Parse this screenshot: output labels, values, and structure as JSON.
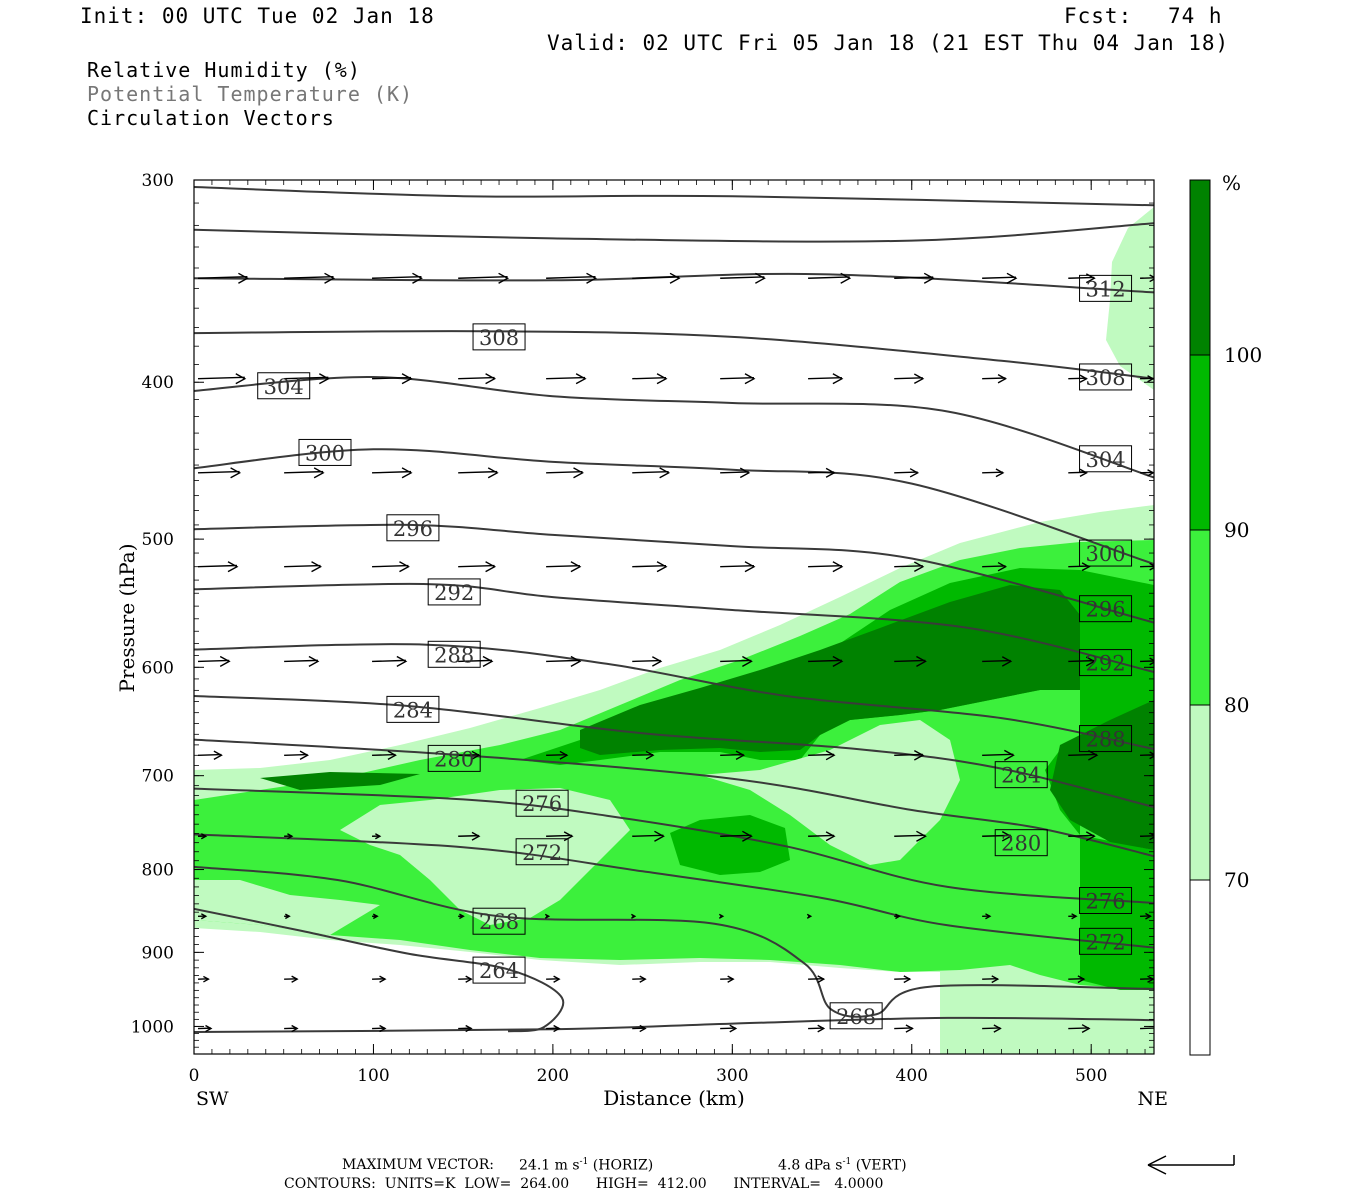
{
  "header": {
    "init": "Init: 00 UTC Tue 02 Jan 18",
    "fcst_label": "Fcst:",
    "fcst_value": "74 h",
    "valid": "Valid: 02 UTC Fri 05 Jan 18 (21 EST Thu 04 Jan 18)"
  },
  "fields": {
    "rh": "Relative Humidity (%)",
    "theta": "Potential Temperature (K)",
    "vectors": "Circulation Vectors"
  },
  "colors": {
    "rh_70_80": "#c0fac0",
    "rh_80_90": "#3cf03c",
    "rh_90_100": "#00b900",
    "rh_100": "#008200",
    "contour": "#3a3a3a",
    "label_gray": "#777777"
  },
  "chart_data": {
    "type": "cross-section",
    "xlabel": "Distance (km)",
    "ylabel": "Pressure (hPa)",
    "xlim": [
      0,
      535
    ],
    "ylim": [
      1040,
      300
    ],
    "y_scale": "log-pressure",
    "x_ticks": [
      "0",
      "100",
      "200",
      "300",
      "400",
      "500"
    ],
    "x_tick_values": [
      0,
      100,
      200,
      300,
      400,
      500
    ],
    "y_ticks": [
      "300",
      "400",
      "500",
      "600",
      "700",
      "800",
      "900",
      "1000"
    ],
    "y_tick_values": [
      300,
      400,
      500,
      600,
      700,
      800,
      900,
      1000
    ],
    "endpoint_left": "SW",
    "endpoint_right": "NE",
    "colorbar": {
      "unit": "%",
      "levels": [
        "70",
        "80",
        "90",
        "100"
      ],
      "level_values": [
        70,
        80,
        90,
        100
      ]
    },
    "theta_contours": [
      {
        "label": "312",
        "points": [
          [
            0,
            303
          ],
          [
            150,
            307
          ],
          [
            300,
            307
          ],
          [
            535,
            311
          ]
        ]
      },
      {
        "label": "312",
        "points": [
          [
            0,
            322
          ],
          [
            200,
            326
          ],
          [
            400,
            327
          ],
          [
            535,
            319
          ]
        ]
      },
      {
        "label": "312",
        "points": [
          [
            0,
            345
          ],
          [
            200,
            346
          ],
          [
            350,
            343
          ],
          [
            535,
            352
          ]
        ]
      },
      {
        "label": "308",
        "points": [
          [
            0,
            373
          ],
          [
            160,
            372
          ],
          [
            300,
            375
          ],
          [
            450,
            388
          ],
          [
            535,
            398
          ]
        ]
      },
      {
        "label": "304",
        "points": [
          [
            0,
            405
          ],
          [
            100,
            397
          ],
          [
            200,
            408
          ],
          [
            300,
            412
          ],
          [
            420,
            417
          ],
          [
            535,
            458
          ]
        ]
      },
      {
        "label": "300",
        "points": [
          [
            0,
            452
          ],
          [
            100,
            440
          ],
          [
            200,
            448
          ],
          [
            300,
            453
          ],
          [
            400,
            462
          ],
          [
            535,
            518
          ]
        ]
      },
      {
        "label": "296",
        "points": [
          [
            0,
            493
          ],
          [
            120,
            490
          ],
          [
            200,
            497
          ],
          [
            300,
            505
          ],
          [
            400,
            514
          ],
          [
            535,
            563
          ]
        ]
      },
      {
        "label": "292",
        "points": [
          [
            0,
            537
          ],
          [
            130,
            533
          ],
          [
            200,
            543
          ],
          [
            300,
            553
          ],
          [
            430,
            567
          ],
          [
            535,
            604
          ]
        ]
      },
      {
        "label": "288",
        "points": [
          [
            0,
            585
          ],
          [
            130,
            581
          ],
          [
            230,
            597
          ],
          [
            330,
            625
          ],
          [
            450,
            645
          ],
          [
            535,
            674
          ]
        ]
      },
      {
        "label": "284",
        "points": [
          [
            0,
            625
          ],
          [
            120,
            634
          ],
          [
            250,
            659
          ],
          [
            370,
            674
          ],
          [
            450,
            693
          ],
          [
            535,
            732
          ]
        ]
      },
      {
        "label": "280",
        "points": [
          [
            0,
            665
          ],
          [
            150,
            680
          ],
          [
            300,
            703
          ],
          [
            400,
            735
          ],
          [
            470,
            754
          ],
          [
            535,
            785
          ]
        ]
      },
      {
        "label": "276",
        "points": [
          [
            0,
            713
          ],
          [
            150,
            724
          ],
          [
            230,
            741
          ],
          [
            330,
            774
          ],
          [
            420,
            820
          ],
          [
            535,
            839
          ]
        ]
      },
      {
        "label": "272",
        "points": [
          [
            0,
            761
          ],
          [
            150,
            775
          ],
          [
            250,
            802
          ],
          [
            350,
            833
          ],
          [
            420,
            866
          ],
          [
            535,
            894
          ]
        ]
      },
      {
        "label": "268",
        "points": [
          [
            0,
            797
          ],
          [
            80,
            812
          ],
          [
            170,
            855
          ],
          [
            290,
            864
          ],
          [
            340,
            914
          ],
          [
            355,
            976
          ],
          [
            380,
            983
          ],
          [
            410,
            945
          ],
          [
            535,
            948
          ]
        ]
      },
      {
        "label": "264",
        "points": [
          [
            0,
            846
          ],
          [
            60,
            873
          ],
          [
            120,
            902
          ],
          [
            175,
            922
          ],
          [
            205,
            960
          ],
          [
            195,
            1001
          ],
          [
            175,
            1007
          ]
        ]
      },
      {
        "label": "",
        "points": [
          [
            0,
            1008
          ],
          [
            200,
            1004
          ],
          [
            300,
            996
          ],
          [
            420,
            988
          ],
          [
            535,
            991
          ]
        ]
      }
    ],
    "theta_labels": [
      {
        "text": "312",
        "x": 508,
        "p": 350
      },
      {
        "text": "308",
        "x": 170,
        "p": 375
      },
      {
        "text": "308",
        "x": 508,
        "p": 397
      },
      {
        "text": "304",
        "x": 50,
        "p": 402
      },
      {
        "text": "304",
        "x": 508,
        "p": 446
      },
      {
        "text": "300",
        "x": 73,
        "p": 442
      },
      {
        "text": "300",
        "x": 508,
        "p": 510
      },
      {
        "text": "296",
        "x": 122,
        "p": 492
      },
      {
        "text": "296",
        "x": 508,
        "p": 552
      },
      {
        "text": "292",
        "x": 145,
        "p": 539
      },
      {
        "text": "292",
        "x": 508,
        "p": 596
      },
      {
        "text": "288",
        "x": 145,
        "p": 589
      },
      {
        "text": "288",
        "x": 508,
        "p": 664
      },
      {
        "text": "284",
        "x": 122,
        "p": 637
      },
      {
        "text": "284",
        "x": 461,
        "p": 699
      },
      {
        "text": "280",
        "x": 145,
        "p": 683
      },
      {
        "text": "280",
        "x": 461,
        "p": 770
      },
      {
        "text": "276",
        "x": 194,
        "p": 728
      },
      {
        "text": "276",
        "x": 508,
        "p": 836
      },
      {
        "text": "272",
        "x": 194,
        "p": 780
      },
      {
        "text": "272",
        "x": 508,
        "p": 886
      },
      {
        "text": "268",
        "x": 170,
        "p": 861
      },
      {
        "text": "268",
        "x": 369,
        "p": 985
      },
      {
        "text": "264",
        "x": 170,
        "p": 923
      }
    ],
    "vector_rows": [
      {
        "p": 345,
        "dx": [
          38,
          38,
          38,
          38,
          38,
          36,
          34,
          32,
          30,
          26,
          20,
          12
        ]
      },
      {
        "p": 398,
        "dx": [
          36,
          34,
          30,
          28,
          30,
          26,
          26,
          26,
          22,
          18,
          14,
          10
        ]
      },
      {
        "p": 455,
        "dx": [
          32,
          30,
          30,
          30,
          28,
          28,
          22,
          20,
          18,
          16,
          14,
          10
        ]
      },
      {
        "p": 520,
        "dx": [
          30,
          28,
          28,
          28,
          26,
          26,
          26,
          26,
          22,
          18,
          16,
          12
        ]
      },
      {
        "p": 595,
        "dx": [
          24,
          26,
          26,
          26,
          26,
          22,
          24,
          26,
          24,
          22,
          20,
          12
        ]
      },
      {
        "p": 680,
        "dx": [
          18,
          18,
          18,
          16,
          16,
          16,
          18,
          20,
          22,
          24,
          22,
          12
        ]
      },
      {
        "p": 763,
        "dx": [
          6,
          6,
          6,
          16,
          20,
          24,
          24,
          20,
          24,
          22,
          20,
          12
        ]
      },
      {
        "p": 855,
        "dx": [
          6,
          4,
          4,
          4,
          2,
          2,
          2,
          2,
          4,
          6,
          6,
          8
        ]
      },
      {
        "p": 935,
        "dx": [
          8,
          10,
          10,
          10,
          10,
          10,
          10,
          12,
          12,
          12,
          12,
          10
        ]
      },
      {
        "p": 1003,
        "dx": [
          10,
          10,
          10,
          10,
          10,
          10,
          12,
          12,
          14,
          14,
          16,
          16
        ]
      }
    ]
  },
  "footer": {
    "max_vector_label": "MAXIMUM VECTOR:",
    "horiz_value": "24.1 m s",
    "horiz_unit": "-1",
    "horiz_tag": "(HORIZ)",
    "vert_value": "4.8 dPa s",
    "vert_unit": "-1",
    "vert_tag": "(VERT)",
    "contours_line": "CONTOURS:  UNITS=K  LOW=  264.00      HIGH=  412.00      INTERVAL=   4.0000"
  }
}
